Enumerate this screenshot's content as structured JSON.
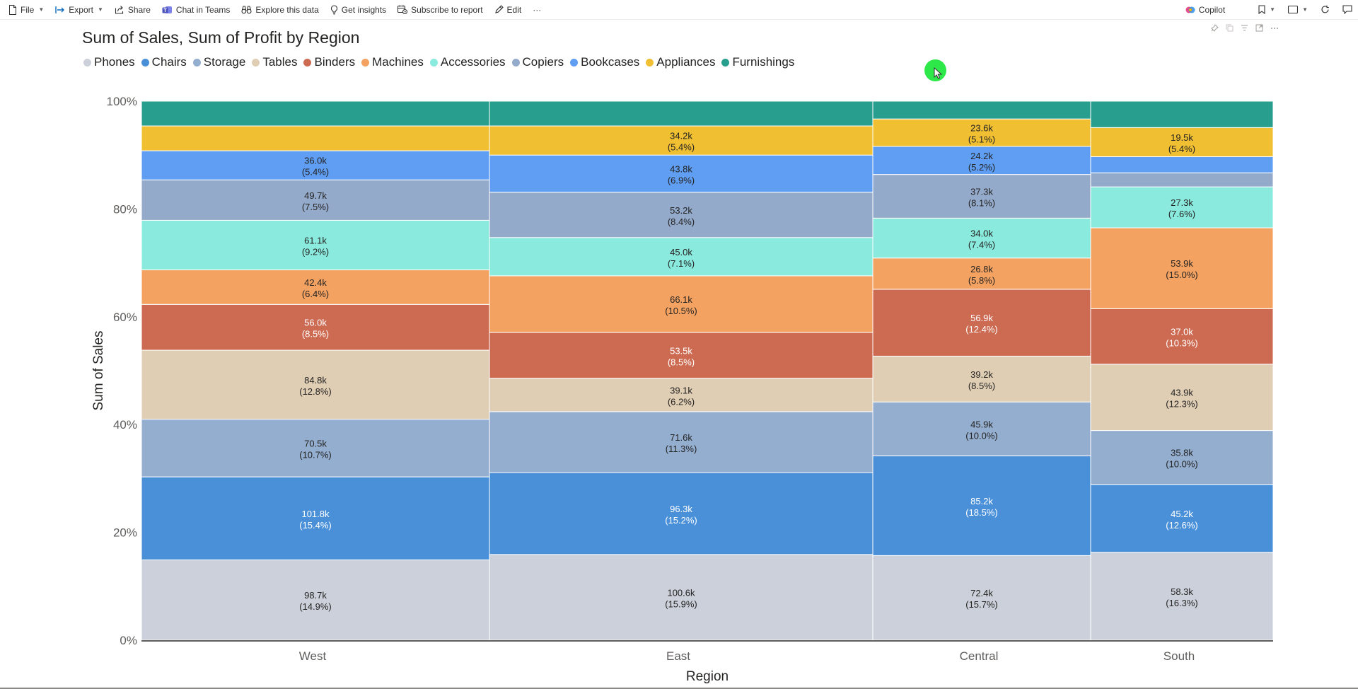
{
  "toolbar": {
    "file": "File",
    "export": "Export",
    "share": "Share",
    "chat_in_teams": "Chat in Teams",
    "explore": "Explore this data",
    "insights": "Get insights",
    "subscribe": "Subscribe to report",
    "edit": "Edit",
    "more": "···",
    "copilot": "Copilot"
  },
  "chart_data": {
    "type": "bar",
    "subtype": "100% stacked (variable width, ribbon/mekko)",
    "title": "Sum of Sales, Sum of Profit by Region",
    "xlabel": "Region",
    "ylabel": "Sum of Sales",
    "ylim": [
      0,
      100
    ],
    "y_ticks": [
      "0%",
      "20%",
      "40%",
      "60%",
      "80%",
      "100%"
    ],
    "categories": [
      "West",
      "East",
      "Central",
      "South"
    ],
    "legend_position": "top-left",
    "series": [
      {
        "name": "Phones",
        "color": "#cbd0da",
        "labels": [
          "98.7k",
          "100.6k",
          "72.4k",
          "58.3k"
        ],
        "percent_labels": [
          "(14.9%)",
          "(15.9%)",
          "(15.7%)",
          "(16.3%)"
        ],
        "values": [
          14.9,
          15.9,
          15.7,
          16.3
        ]
      },
      {
        "name": "Chairs",
        "color": "#4a90d9",
        "labels": [
          "101.8k",
          "96.3k",
          "85.2k",
          "45.2k"
        ],
        "percent_labels": [
          "(15.4%)",
          "(15.2%)",
          "(18.5%)",
          "(12.6%)"
        ],
        "values": [
          15.4,
          15.2,
          18.5,
          12.6
        ]
      },
      {
        "name": "Storage",
        "color": "#94aed0",
        "labels": [
          "70.5k",
          "71.6k",
          "45.9k",
          "35.8k"
        ],
        "percent_labels": [
          "(10.7%)",
          "(11.3%)",
          "(10.0%)",
          "(10.0%)"
        ],
        "values": [
          10.7,
          11.3,
          10.0,
          10.0
        ]
      },
      {
        "name": "Tables",
        "color": "#dfcdb4",
        "labels": [
          "84.8k",
          "39.1k",
          "39.2k",
          "43.9k"
        ],
        "percent_labels": [
          "(12.8%)",
          "(6.2%)",
          "(8.5%)",
          "(12.3%)"
        ],
        "values": [
          12.8,
          6.2,
          8.5,
          12.3
        ]
      },
      {
        "name": "Binders",
        "color": "#cd6a52",
        "labels": [
          "56.0k",
          "53.5k",
          "56.9k",
          "37.0k"
        ],
        "percent_labels": [
          "(8.5%)",
          "(8.5%)",
          "(12.4%)",
          "(10.3%)"
        ],
        "values": [
          8.5,
          8.5,
          12.4,
          10.3
        ]
      },
      {
        "name": "Machines",
        "color": "#f4a261",
        "labels": [
          "42.4k",
          "66.1k",
          "26.8k",
          "53.9k"
        ],
        "percent_labels": [
          "(6.4%)",
          "(10.5%)",
          "(5.8%)",
          "(15.0%)"
        ],
        "values": [
          6.4,
          10.5,
          5.8,
          15.0
        ]
      },
      {
        "name": "Accessories",
        "color": "#8aeade",
        "labels": [
          "61.1k",
          "45.0k",
          "34.0k",
          "27.3k"
        ],
        "percent_labels": [
          "(9.2%)",
          "(7.1%)",
          "(7.4%)",
          "(7.6%)"
        ],
        "values": [
          9.2,
          7.1,
          7.4,
          7.6
        ]
      },
      {
        "name": "Copiers",
        "color": "#94aacb",
        "labels": [
          "49.7k",
          "53.2k",
          "37.3k",
          ""
        ],
        "percent_labels": [
          "(7.5%)",
          "(8.4%)",
          "(8.1%)",
          ""
        ],
        "values": [
          7.5,
          8.4,
          8.1,
          2.6
        ]
      },
      {
        "name": "Bookcases",
        "color": "#5f9ef2",
        "labels": [
          "36.0k",
          "43.8k",
          "24.2k",
          ""
        ],
        "percent_labels": [
          "(5.4%)",
          "(6.9%)",
          "(5.2%)",
          ""
        ],
        "values": [
          5.4,
          6.9,
          5.2,
          3.0
        ]
      },
      {
        "name": "Appliances",
        "color": "#f1bf32",
        "labels": [
          "",
          "34.2k",
          "23.6k",
          "19.5k"
        ],
        "percent_labels": [
          "",
          "(5.4%)",
          "(5.1%)",
          "(5.4%)"
        ],
        "values": [
          4.6,
          5.4,
          5.1,
          5.4
        ]
      },
      {
        "name": "Furnishings",
        "color": "#289e8e",
        "labels": [
          "",
          "",
          "",
          ""
        ],
        "percent_labels": [
          "",
          "",
          "",
          ""
        ],
        "values": [
          4.6,
          4.6,
          3.3,
          4.9
        ]
      }
    ]
  }
}
